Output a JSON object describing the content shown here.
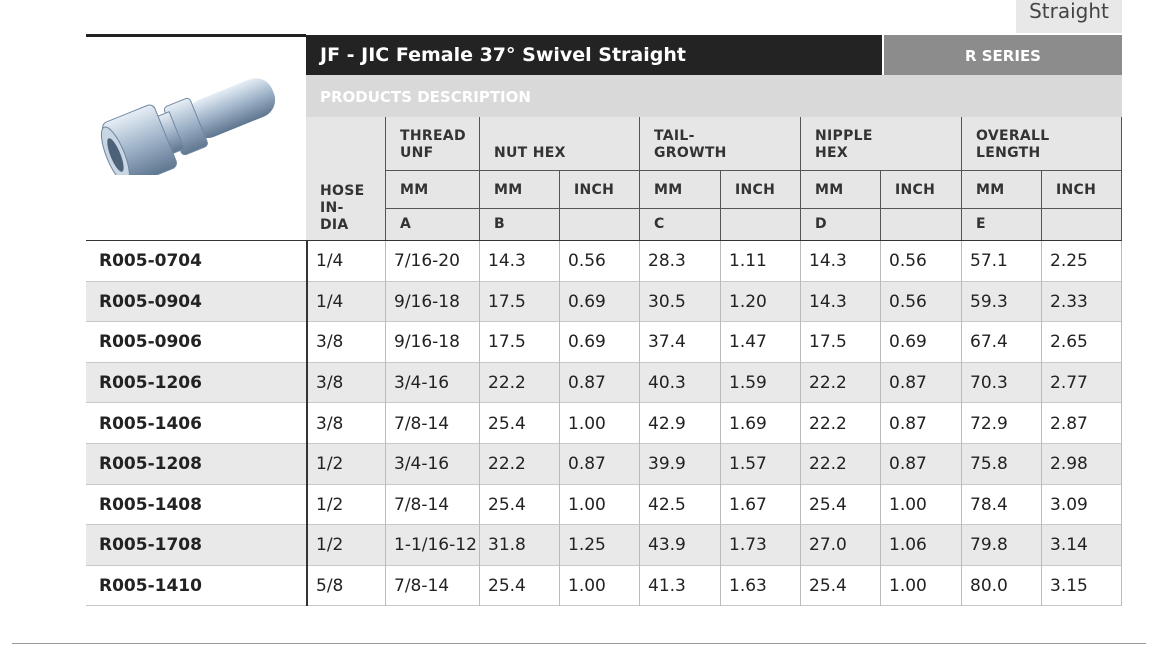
{
  "top_tab": "Straight",
  "header": {
    "title": "JF - JIC Female 37° Swivel Straight",
    "series": "R SERIES",
    "description": "PRODUCTS DESCRIPTION"
  },
  "table": {
    "hose_header": "HOSE IN-DIA",
    "groups": [
      "THREAD UNF",
      "NUT HEX",
      "TAIL-GROWTH",
      "NIPPLE HEX",
      "OVERALL LENGTH"
    ],
    "units": [
      "MM",
      "MM",
      "INCH",
      "MM",
      "INCH",
      "MM",
      "INCH",
      "MM",
      "INCH"
    ],
    "letters": [
      "A",
      "B",
      "C",
      "D",
      "E"
    ],
    "rows": [
      [
        "R005-0704",
        "1/4",
        "7/16-20",
        "14.3",
        "0.56",
        "28.3",
        "1.11",
        "14.3",
        "0.56",
        "57.1",
        "2.25"
      ],
      [
        "R005-0904",
        "1/4",
        "9/16-18",
        "17.5",
        "0.69",
        "30.5",
        "1.20",
        "14.3",
        "0.56",
        "59.3",
        "2.33"
      ],
      [
        "R005-0906",
        "3/8",
        "9/16-18",
        "17.5",
        "0.69",
        "37.4",
        "1.47",
        "17.5",
        "0.69",
        "67.4",
        "2.65"
      ],
      [
        "R005-1206",
        "3/8",
        "3/4-16",
        "22.2",
        "0.87",
        "40.3",
        "1.59",
        "22.2",
        "0.87",
        "70.3",
        "2.77"
      ],
      [
        "R005-1406",
        "3/8",
        "7/8-14",
        "25.4",
        "1.00",
        "42.9",
        "1.69",
        "22.2",
        "0.87",
        "72.9",
        "2.87"
      ],
      [
        "R005-1208",
        "1/2",
        "3/4-16",
        "22.2",
        "0.87",
        "39.9",
        "1.57",
        "22.2",
        "0.87",
        "75.8",
        "2.98"
      ],
      [
        "R005-1408",
        "1/2",
        "7/8-14",
        "25.4",
        "1.00",
        "42.5",
        "1.67",
        "25.4",
        "1.00",
        "78.4",
        "3.09"
      ],
      [
        "R005-1708",
        "1/2",
        "1-1/16-12",
        "31.8",
        "1.25",
        "43.9",
        "1.73",
        "27.0",
        "1.06",
        "79.8",
        "3.14"
      ],
      [
        "R005-1410",
        "5/8",
        "7/8-14",
        "25.4",
        "1.00",
        "41.3",
        "1.63",
        "25.4",
        "1.00",
        "80.0",
        "3.15"
      ]
    ]
  }
}
